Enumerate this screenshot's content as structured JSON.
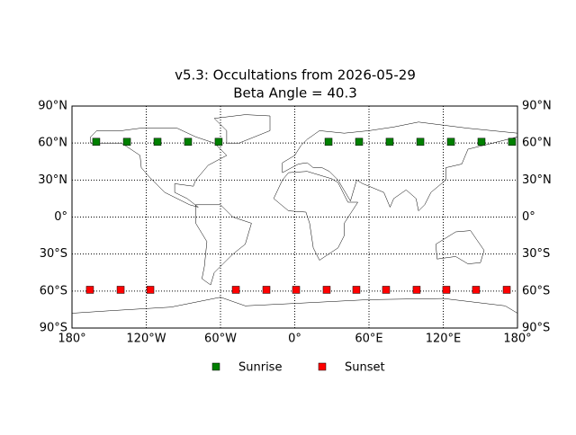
{
  "chart_data": {
    "type": "scatter",
    "title": "v5.3: Occultations from 2026-05-29",
    "subtitle": "Beta Angle = 40.3",
    "xlim": [
      -180,
      180
    ],
    "ylim": [
      -90,
      90
    ],
    "xticks": [
      {
        "value": -180,
        "label": "180°"
      },
      {
        "value": -120,
        "label": "120°W"
      },
      {
        "value": -60,
        "label": "60°W"
      },
      {
        "value": 0,
        "label": "0°"
      },
      {
        "value": 60,
        "label": "60°E"
      },
      {
        "value": 120,
        "label": "120°E"
      },
      {
        "value": 180,
        "label": "180°"
      }
    ],
    "yticks": [
      {
        "value": -90,
        "label": "90°S"
      },
      {
        "value": -60,
        "label": "60°S"
      },
      {
        "value": -30,
        "label": "30°S"
      },
      {
        "value": 0,
        "label": "0°"
      },
      {
        "value": 30,
        "label": "30°N"
      },
      {
        "value": 60,
        "label": "60°N"
      },
      {
        "value": 90,
        "label": "90°N"
      }
    ],
    "grid": true,
    "legend": "bottom",
    "series": [
      {
        "name": "Sunrise",
        "color": "#008000",
        "x": [
          -160.4,
          -135.6,
          -110.9,
          -86.2,
          -61.5,
          27.3,
          52,
          76.7,
          101.5,
          126.2,
          150.9,
          175.6
        ],
        "values": [
          61,
          61,
          61,
          61,
          61,
          61,
          61,
          61,
          61,
          61,
          61,
          61
        ]
      },
      {
        "name": "Sunset",
        "color": "#ff0000",
        "x": [
          -165.5,
          -140.7,
          -116.7,
          -47.6,
          -22.9,
          1.1,
          25.8,
          49.8,
          73.8,
          98.5,
          122.5,
          146.5,
          171.3
        ],
        "values": [
          -59,
          -59,
          -59,
          -59,
          -59,
          -59,
          -59,
          -59,
          -59,
          -59,
          -59,
          -59,
          -59
        ]
      }
    ]
  }
}
